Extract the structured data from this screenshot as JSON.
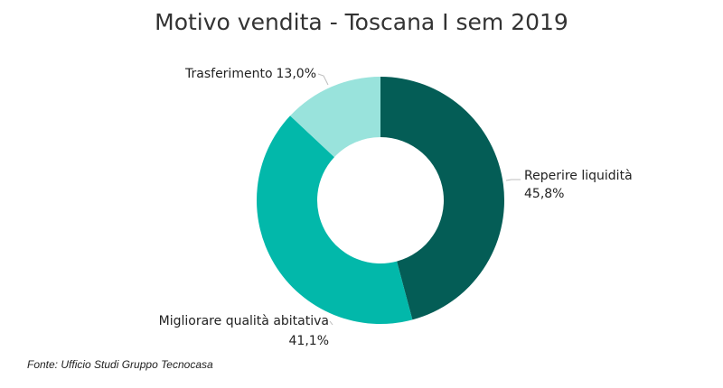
{
  "chart_data": {
    "type": "pie",
    "variant": "donut",
    "title": "Motivo vendita - Toscana I sem 2019",
    "slices": [
      {
        "name": "Reperire liquidità",
        "value": 45.8,
        "value_label": "45,8%",
        "color": "#045d56"
      },
      {
        "name": "Migliorare qualità abitativa",
        "value": 41.1,
        "value_label": "41,1%",
        "color": "#02b8aa"
      },
      {
        "name": "Trasferimento",
        "value": 13.0,
        "value_label": "13,0%",
        "color": "#99e3dc"
      }
    ],
    "source": "Fonte: Ufficio Studi Gruppo Tecnocasa"
  }
}
